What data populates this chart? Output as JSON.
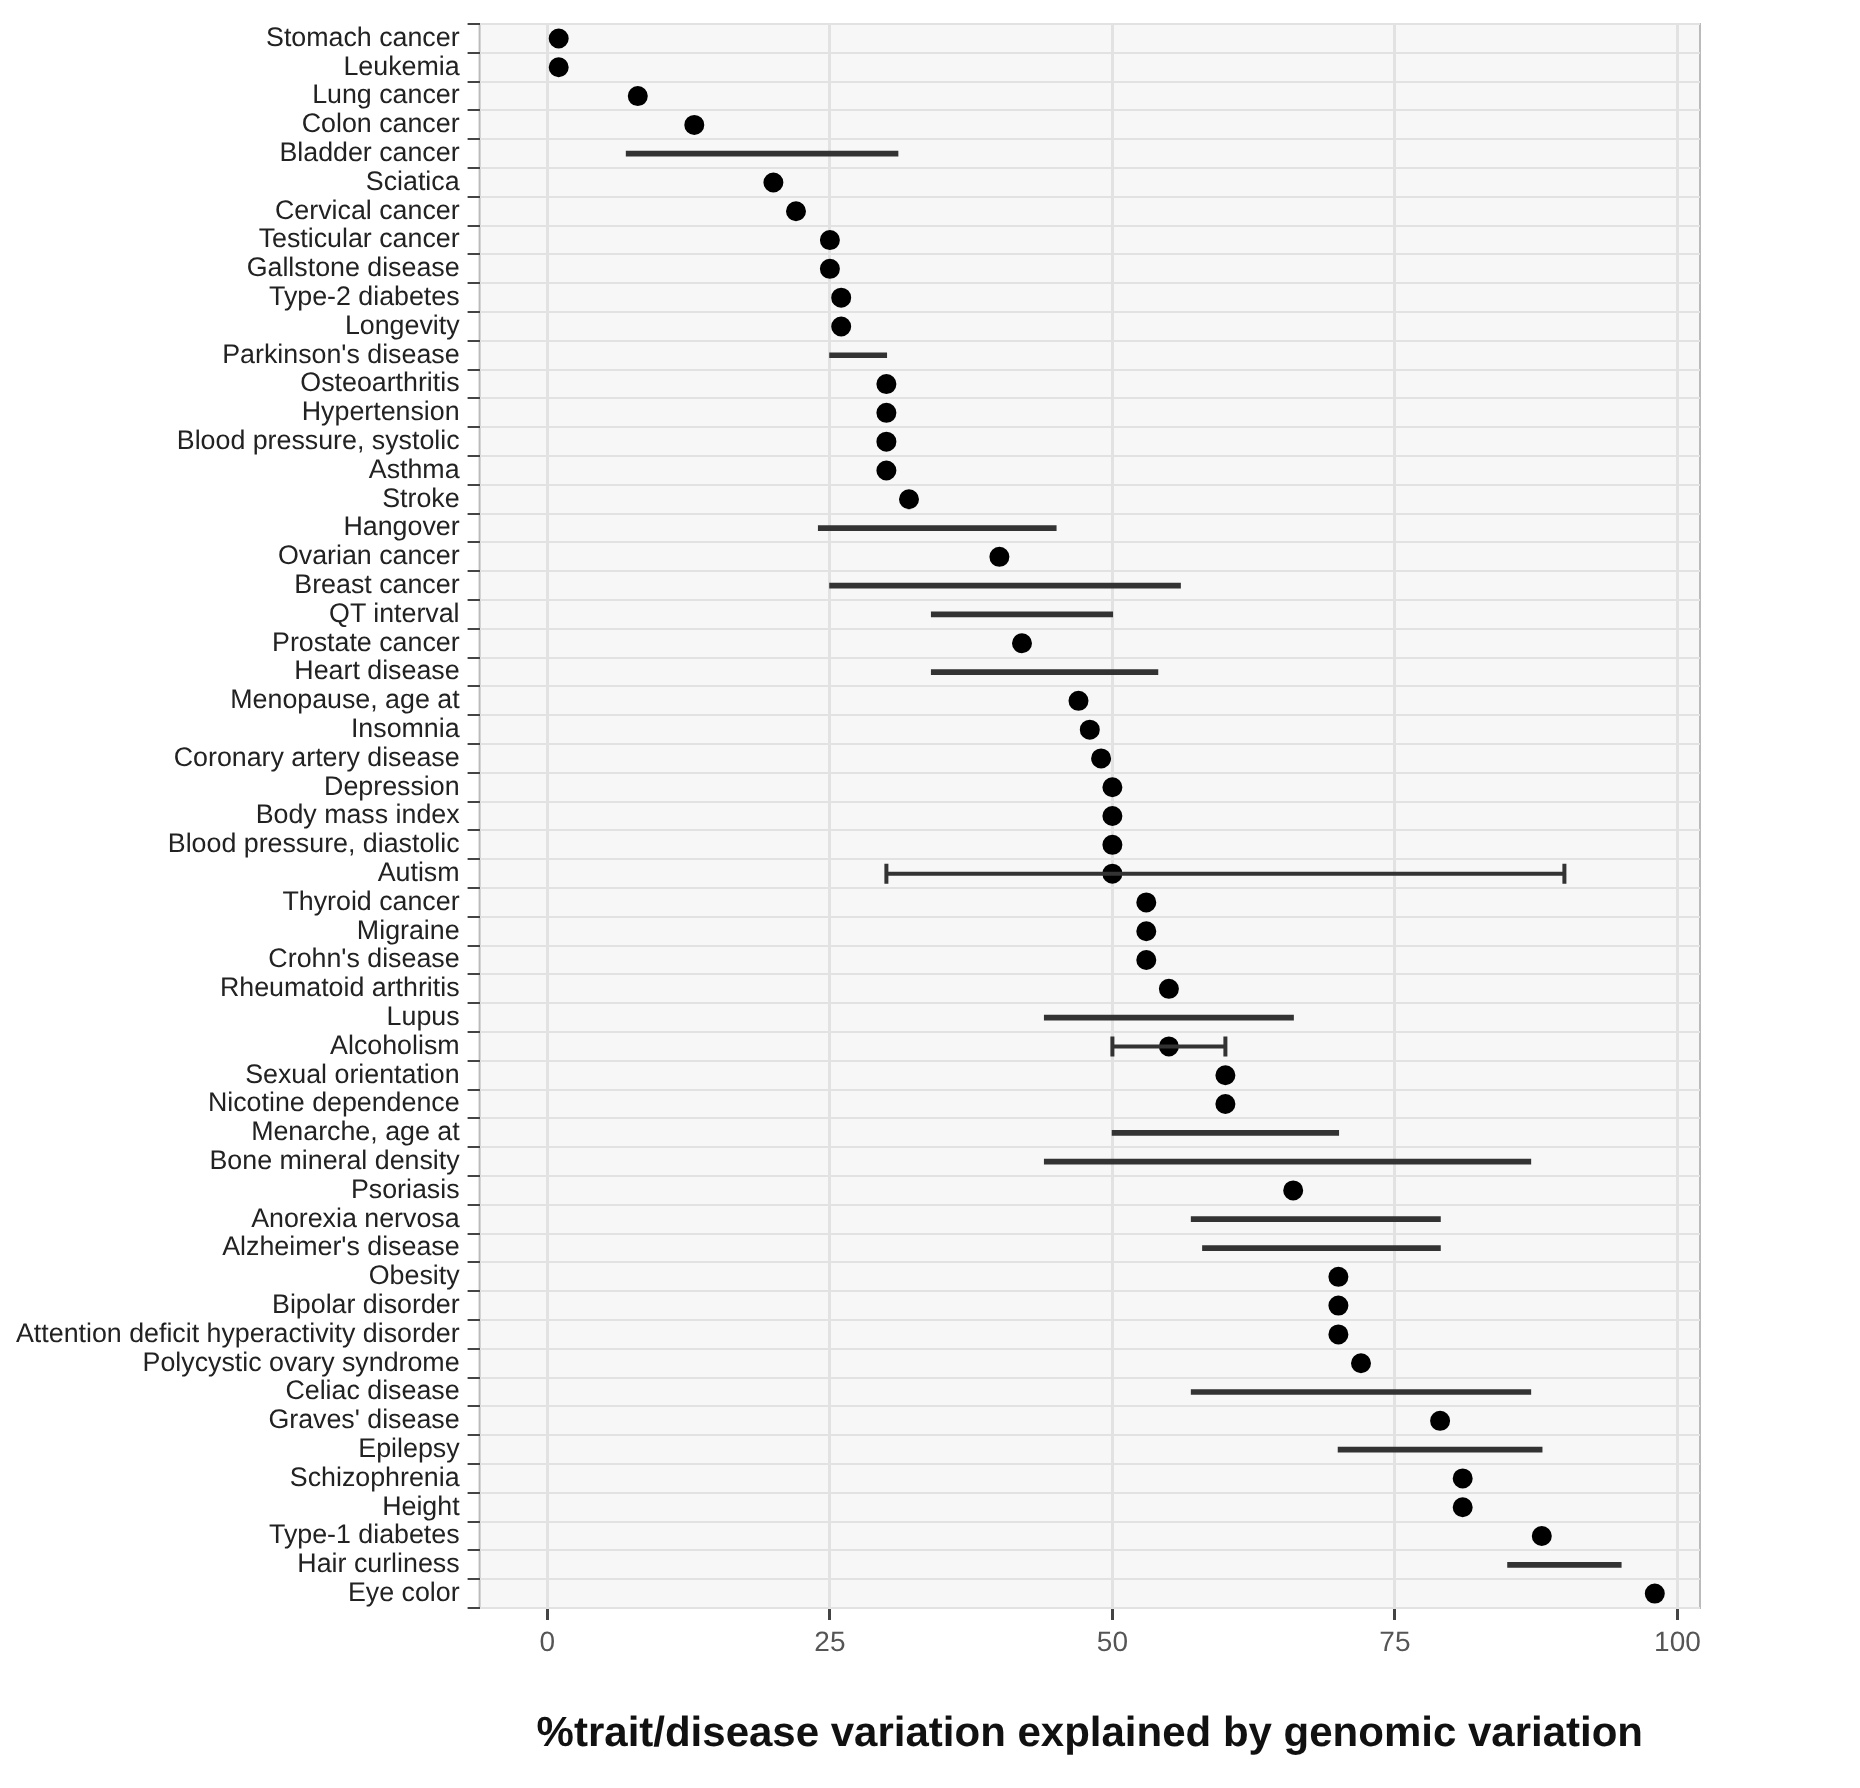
{
  "chart_data": {
    "type": "scatter",
    "orientation": "horizontal",
    "xlabel": "%trait/disease variation explained by genomic variation",
    "categories": [
      "Stomach cancer",
      "Leukemia",
      "Lung cancer",
      "Colon cancer",
      "Bladder cancer",
      "Sciatica",
      "Cervical cancer",
      "Testicular cancer",
      "Gallstone disease",
      "Type-2 diabetes",
      "Longevity",
      "Parkinson's disease",
      "Osteoarthritis",
      "Hypertension",
      "Blood pressure, systolic",
      "Asthma",
      "Stroke",
      "Hangover",
      "Ovarian cancer",
      "Breast cancer",
      "QT interval",
      "Prostate cancer",
      "Heart disease",
      "Menopause, age at",
      "Insomnia",
      "Coronary artery disease",
      "Depression",
      "Body mass index",
      "Blood pressure, diastolic",
      "Autism",
      "Thyroid cancer",
      "Migraine",
      "Crohn's disease",
      "Rheumatoid arthritis",
      "Lupus",
      "Alcoholism",
      "Sexual orientation",
      "Nicotine dependence",
      "Menarche, age at",
      "Bone mineral density",
      "Psoriasis",
      "Anorexia nervosa",
      "Alzheimer's disease",
      "Obesity",
      "Bipolar disorder",
      "Attention deficit hyperactivity disorder",
      "Polycystic ovary syndrome",
      "Celiac disease",
      "Graves' disease",
      "Epilepsy",
      "Schizophrenia",
      "Height",
      "Type-1 diabetes",
      "Hair curliness",
      "Eye color"
    ],
    "series": [
      {
        "type": "bar",
        "color": "#333333",
        "values": [
          null,
          null,
          null,
          null,
          24,
          null,
          null,
          null,
          null,
          null,
          null,
          5,
          null,
          null,
          null,
          null,
          null,
          21,
          null,
          31,
          16,
          null,
          20,
          null,
          null,
          null,
          null,
          null,
          null,
          null,
          null,
          null,
          null,
          null,
          22,
          null,
          null,
          null,
          20,
          43,
          null,
          22,
          21,
          null,
          null,
          null,
          null,
          30,
          null,
          18,
          null,
          null,
          null,
          10,
          null
        ],
        "base": [
          null,
          null,
          null,
          null,
          7,
          null,
          null,
          null,
          null,
          null,
          null,
          25,
          null,
          null,
          null,
          null,
          null,
          24,
          null,
          25,
          34,
          null,
          34,
          null,
          null,
          null,
          null,
          null,
          null,
          null,
          null,
          null,
          null,
          null,
          44,
          null,
          null,
          null,
          50,
          44,
          null,
          57,
          58,
          null,
          null,
          null,
          null,
          57,
          null,
          70,
          null,
          null,
          null,
          85,
          null
        ]
      },
      {
        "type": "scatter",
        "color": "#000000",
        "values": [
          1,
          1,
          8,
          13,
          null,
          20,
          22,
          25,
          25,
          26,
          26,
          null,
          30,
          30,
          30,
          30,
          32,
          null,
          40,
          null,
          null,
          42,
          null,
          47,
          48,
          49,
          50,
          50,
          50,
          50,
          53,
          53,
          53,
          55,
          null,
          55,
          60,
          60,
          null,
          null,
          66,
          null,
          null,
          70,
          70,
          70,
          72,
          null,
          79,
          null,
          81,
          81,
          88,
          null,
          98
        ],
        "errors": [
          null,
          null,
          null,
          null,
          null,
          null,
          null,
          null,
          null,
          null,
          null,
          null,
          null,
          null,
          null,
          null,
          null,
          null,
          null,
          null,
          null,
          null,
          null,
          null,
          null,
          null,
          null,
          null,
          null,
          [
            30,
            90
          ],
          null,
          null,
          null,
          null,
          null,
          [
            50,
            60
          ],
          null,
          null,
          null,
          null,
          null,
          null,
          null,
          null,
          null,
          null,
          null,
          null,
          null,
          null,
          null,
          null,
          null,
          null,
          null
        ]
      }
    ],
    "marker": "circle",
    "grid": true,
    "xlim": [
      -6,
      102
    ],
    "xticks": [
      0,
      25,
      50,
      75,
      100
    ]
  }
}
